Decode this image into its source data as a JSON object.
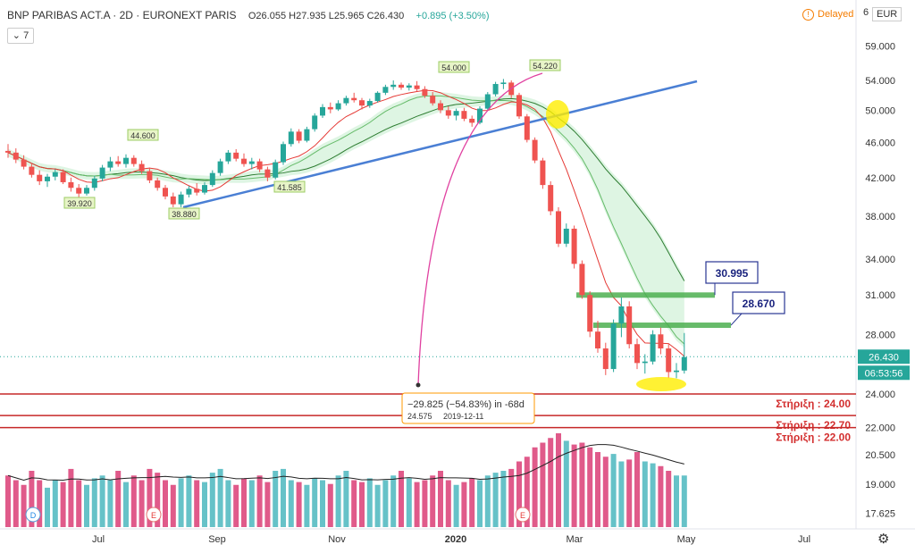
{
  "header": {
    "symbol": "BNP PARIBAS ACT.A · 2D · EURONEXT PARIS",
    "ohlc": "O26.055 H27.935 L25.965 C26.430",
    "change": "+0.895 (+3.50%)",
    "indicator_count": "7",
    "delayed": "Delayed",
    "currency": "EUR",
    "currency_digit": "6"
  },
  "colors": {
    "up": "#26a69a",
    "down": "#ef5350",
    "trendline": "#4a7fd4",
    "support": "#c62828",
    "resistance": "#4caf50",
    "arc": "#e040a0",
    "highlight": "#ffee00",
    "volume_up": "#66c2c8",
    "volume_down": "#e05a8a"
  },
  "chart_data": {
    "type": "candlestick",
    "title": "",
    "y_axis_ticks": [
      "59.000",
      "54.000",
      "50.000",
      "46.000",
      "42.000",
      "38.000",
      "34.000",
      "31.000",
      "28.000",
      "24.000",
      "22.000",
      "20.500",
      "19.000",
      "17.625"
    ],
    "x_axis_ticks": [
      "Jul",
      "Sep",
      "Nov",
      "2020",
      "Mar",
      "May",
      "Jul"
    ],
    "last_price": "26.430",
    "countdown": "06:53:56",
    "price_labels": [
      "44.600",
      "39.920",
      "38.880",
      "41.585",
      "54.000",
      "54.220"
    ],
    "resistance_levels": [
      {
        "value": 30.995,
        "label": "30.995"
      },
      {
        "value": 28.67,
        "label": "28.670"
      }
    ],
    "support_levels": [
      {
        "value": 24.0,
        "label": "Στήριξη : 24.00"
      },
      {
        "value": 22.7,
        "label": "Στήριξη : 22.70"
      },
      {
        "value": 22.0,
        "label": "Στήριξη : 22.00"
      }
    ],
    "measurement": {
      "line1": "−29.825 (−54.83%) in -68d",
      "line2_value": "24.575",
      "line2_date": "2019-12-11"
    },
    "event_markers": [
      "D",
      "E",
      "E"
    ],
    "candles": [
      [
        45,
        45.8,
        44.2,
        44.8
      ],
      [
        44.8,
        45.3,
        43.6,
        44.0
      ],
      [
        44.0,
        44.5,
        42.9,
        43.2
      ],
      [
        43.2,
        43.6,
        42.0,
        42.3
      ],
      [
        42.3,
        42.8,
        41.2,
        41.6
      ],
      [
        41.6,
        42.4,
        41.0,
        42.1
      ],
      [
        42.1,
        42.9,
        41.7,
        42.6
      ],
      [
        42.6,
        42.9,
        41.3,
        41.5
      ],
      [
        41.5,
        42.0,
        40.5,
        40.9
      ],
      [
        40.9,
        41.3,
        39.9,
        40.3
      ],
      [
        40.3,
        41.2,
        40.1,
        40.9
      ],
      [
        40.9,
        42.2,
        40.6,
        41.9
      ],
      [
        41.9,
        43.4,
        41.6,
        43.1
      ],
      [
        43.1,
        44.3,
        42.7,
        43.8
      ],
      [
        43.8,
        44.4,
        43.2,
        43.5
      ],
      [
        43.5,
        44.6,
        43.1,
        44.2
      ],
      [
        44.2,
        44.5,
        43.2,
        43.5
      ],
      [
        43.5,
        43.9,
        42.4,
        42.7
      ],
      [
        42.7,
        43.1,
        41.4,
        41.7
      ],
      [
        41.7,
        42.0,
        40.6,
        40.9
      ],
      [
        40.9,
        41.2,
        39.7,
        40.0
      ],
      [
        40.0,
        40.4,
        38.9,
        39.2
      ],
      [
        39.2,
        40.5,
        38.9,
        40.2
      ],
      [
        40.2,
        41.1,
        39.9,
        40.8
      ],
      [
        40.8,
        41.4,
        40.1,
        40.4
      ],
      [
        40.4,
        41.5,
        40.2,
        41.2
      ],
      [
        41.2,
        42.8,
        41.0,
        42.5
      ],
      [
        42.5,
        44.1,
        42.2,
        43.8
      ],
      [
        43.8,
        45.1,
        43.5,
        44.8
      ],
      [
        44.8,
        45.2,
        43.8,
        44.1
      ],
      [
        44.1,
        44.7,
        43.2,
        43.5
      ],
      [
        43.5,
        44.2,
        42.9,
        43.8
      ],
      [
        43.8,
        44.1,
        42.6,
        42.9
      ],
      [
        42.9,
        43.2,
        41.6,
        42.0
      ],
      [
        42.0,
        44.0,
        41.8,
        43.7
      ],
      [
        43.7,
        46.1,
        43.4,
        45.8
      ],
      [
        45.8,
        47.7,
        45.5,
        47.3
      ],
      [
        47.3,
        47.6,
        45.9,
        46.2
      ],
      [
        46.2,
        47.9,
        46.0,
        47.6
      ],
      [
        47.6,
        49.6,
        47.3,
        49.3
      ],
      [
        49.3,
        50.8,
        49.0,
        50.4
      ],
      [
        50.4,
        51.0,
        49.6,
        50.1
      ],
      [
        50.1,
        51.3,
        49.9,
        50.9
      ],
      [
        50.9,
        51.9,
        50.6,
        51.6
      ],
      [
        51.6,
        52.3,
        51.0,
        51.3
      ],
      [
        51.3,
        51.6,
        50.1,
        50.6
      ],
      [
        50.6,
        51.5,
        50.3,
        51.2
      ],
      [
        51.2,
        52.5,
        51.0,
        52.3
      ],
      [
        52.3,
        53.4,
        52.0,
        53.1
      ],
      [
        53.1,
        54.0,
        52.7,
        53.4
      ],
      [
        53.4,
        53.7,
        52.7,
        53.0
      ],
      [
        53.0,
        53.6,
        52.6,
        53.3
      ],
      [
        53.3,
        53.9,
        52.5,
        52.8
      ],
      [
        52.8,
        53.2,
        51.6,
        51.9
      ],
      [
        51.9,
        52.4,
        50.6,
        50.9
      ],
      [
        50.9,
        51.3,
        49.6,
        50.0
      ],
      [
        50.0,
        50.5,
        48.9,
        49.3
      ],
      [
        49.3,
        50.2,
        48.7,
        49.9
      ],
      [
        49.9,
        50.3,
        48.6,
        48.9
      ],
      [
        48.9,
        49.3,
        47.9,
        48.4
      ],
      [
        48.4,
        50.5,
        48.2,
        50.2
      ],
      [
        50.2,
        52.4,
        50.0,
        52.1
      ],
      [
        52.1,
        53.8,
        51.8,
        53.5
      ],
      [
        53.5,
        54.2,
        52.8,
        53.7
      ],
      [
        53.7,
        54.0,
        51.6,
        52.0
      ],
      [
        52.0,
        52.3,
        48.9,
        49.2
      ],
      [
        49.2,
        49.5,
        46.0,
        46.3
      ],
      [
        46.3,
        46.6,
        43.6,
        43.9
      ],
      [
        43.9,
        44.2,
        40.8,
        41.2
      ],
      [
        41.2,
        41.6,
        38.1,
        38.5
      ],
      [
        38.5,
        38.9,
        35.1,
        35.4
      ],
      [
        35.4,
        37.3,
        35.1,
        36.8
      ],
      [
        36.8,
        37.1,
        33.2,
        33.6
      ],
      [
        33.6,
        33.9,
        30.7,
        31.0
      ],
      [
        31.0,
        31.3,
        27.8,
        28.2
      ],
      [
        28.2,
        29.0,
        26.7,
        27.0
      ],
      [
        27.0,
        27.4,
        25.2,
        25.6
      ],
      [
        25.6,
        29.1,
        25.4,
        28.8
      ],
      [
        28.8,
        30.8,
        27.8,
        30.1
      ],
      [
        30.1,
        30.5,
        27.0,
        27.3
      ],
      [
        27.3,
        27.7,
        25.6,
        26.0
      ],
      [
        26.0,
        26.6,
        25.3,
        26.1
      ],
      [
        26.1,
        28.3,
        25.9,
        28.0
      ],
      [
        28.0,
        28.5,
        26.6,
        27.0
      ],
      [
        27.0,
        27.3,
        25.0,
        25.4
      ],
      [
        25.4,
        26.0,
        25.0,
        25.5
      ],
      [
        25.5,
        28.1,
        25.3,
        26.4
      ]
    ],
    "volume_samples": [
      0.55,
      0.5,
      0.45,
      0.6,
      0.5,
      0.42,
      0.5,
      0.48,
      0.62,
      0.5,
      0.45,
      0.52,
      0.55,
      0.5,
      0.6,
      0.48,
      0.55,
      0.5,
      0.62,
      0.58,
      0.5,
      0.45,
      0.52,
      0.55,
      0.5,
      0.48,
      0.58,
      0.62,
      0.5,
      0.45,
      0.52,
      0.5,
      0.55,
      0.48,
      0.6,
      0.62,
      0.5,
      0.48,
      0.45,
      0.52,
      0.5,
      0.46,
      0.55,
      0.6,
      0.5,
      0.48,
      0.52,
      0.45,
      0.5,
      0.55,
      0.6,
      0.52,
      0.48,
      0.5,
      0.55,
      0.6,
      0.5,
      0.45,
      0.48,
      0.52,
      0.5,
      0.55,
      0.58,
      0.6,
      0.62,
      0.7,
      0.75,
      0.85,
      0.9,
      0.95,
      1.0,
      0.92,
      0.88,
      0.9,
      0.85,
      0.8,
      0.75,
      0.78,
      0.7,
      0.72,
      0.8,
      0.7,
      0.68,
      0.65,
      0.6,
      0.55
    ]
  }
}
